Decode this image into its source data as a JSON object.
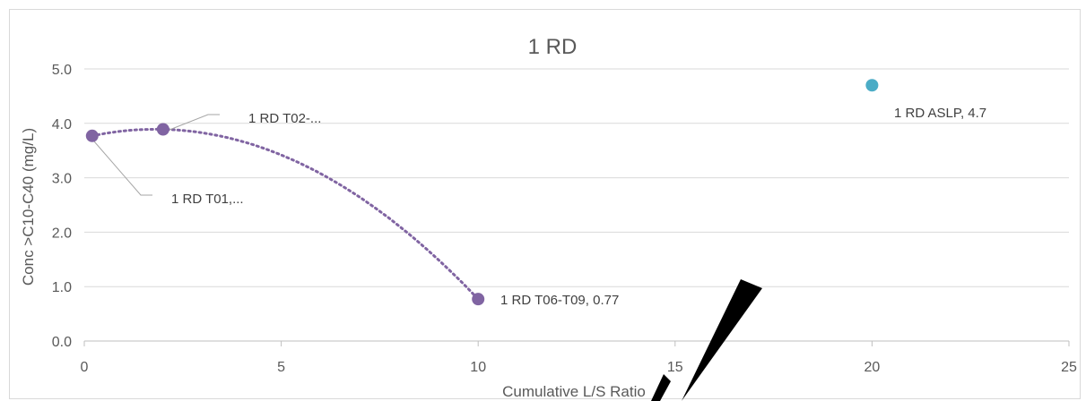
{
  "chart_data": {
    "type": "scatter",
    "title": "1 RD",
    "xlabel": "Cumulative L/S Ratio",
    "ylabel": "Conc >C10-C40 (mg/L)",
    "xlim": [
      0,
      25
    ],
    "ylim": [
      0.0,
      5.0
    ],
    "x_ticks": [
      "0",
      "5",
      "10",
      "15",
      "20",
      "25"
    ],
    "y_ticks": [
      "0.0",
      "1.0",
      "2.0",
      "3.0",
      "4.0",
      "5.0"
    ],
    "grid": "horizontal",
    "legend": "none",
    "series": [
      {
        "color": "#8064a2",
        "trendline": "polynomial-dotted",
        "points": [
          {
            "x": 0.2,
            "y": 3.77,
            "label": "1 RD T01,..."
          },
          {
            "x": 2.0,
            "y": 3.89,
            "label": "1 RD T02-..."
          },
          {
            "x": 10.0,
            "y": 0.77,
            "label": "1 RD T06-T09, 0.77"
          }
        ]
      },
      {
        "color": "#4bacc6",
        "points": [
          {
            "x": 20.0,
            "y": 4.7,
            "label": "1 RD ASLP, 4.7"
          }
        ]
      }
    ]
  }
}
